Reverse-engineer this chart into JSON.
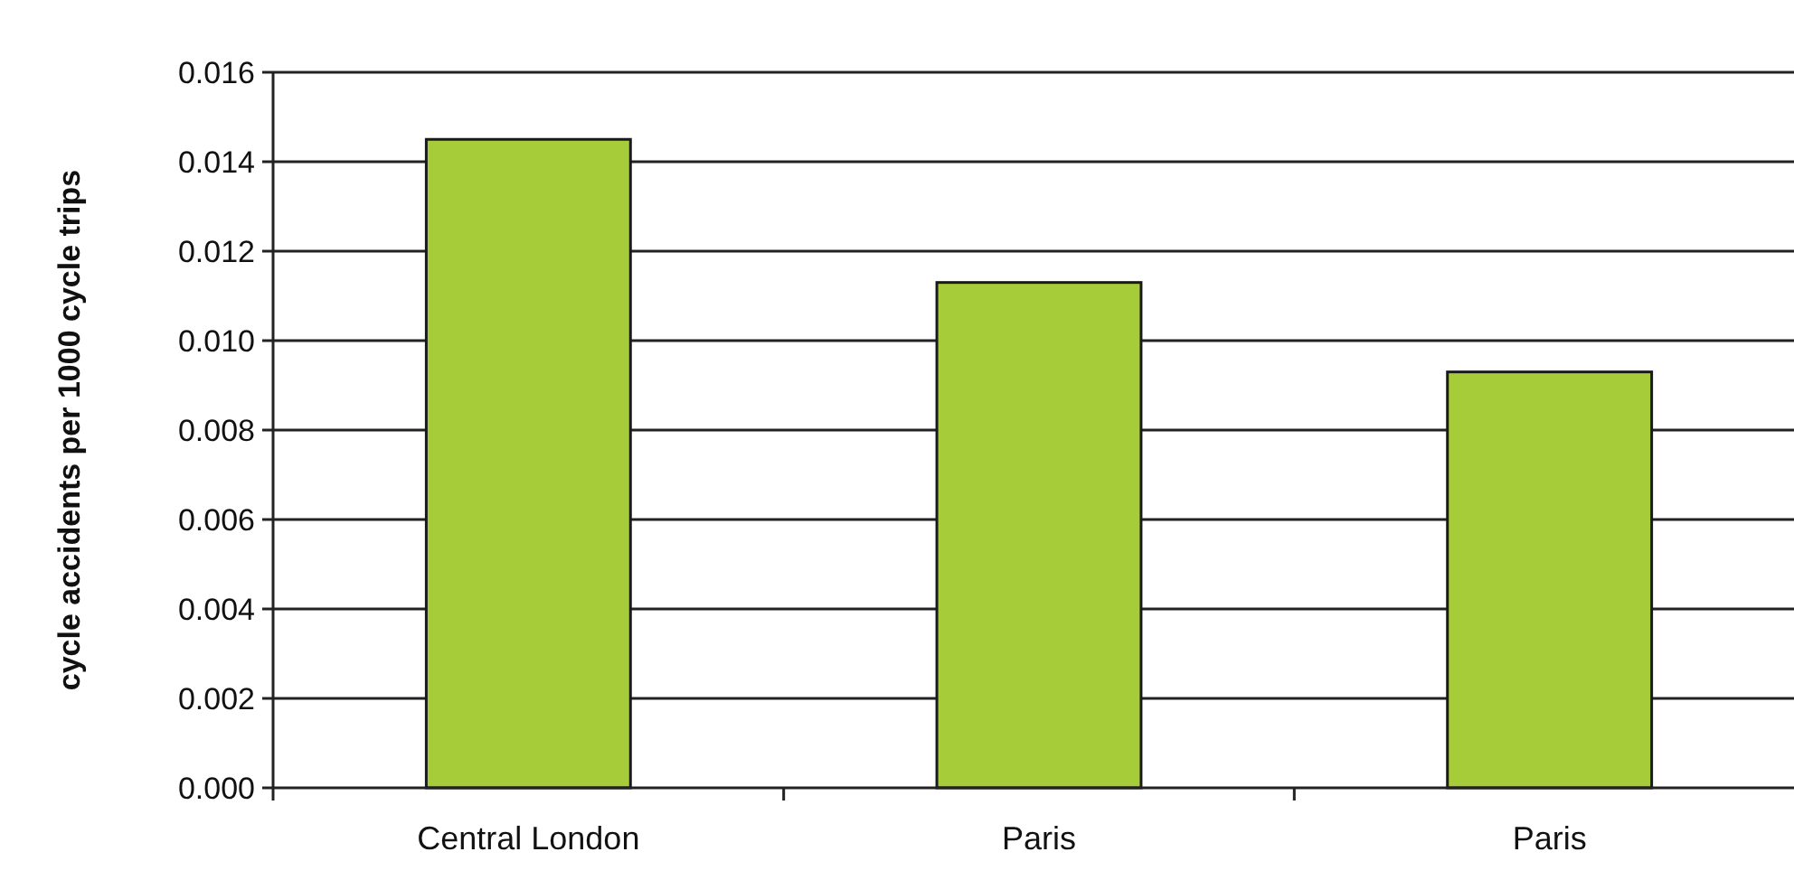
{
  "chart_data": {
    "type": "bar",
    "ylabel": "cycle accidents per 1000 cycle trips",
    "categories": [
      "Central London",
      "Paris",
      "Paris"
    ],
    "values": [
      0.0145,
      0.0113,
      0.0093
    ],
    "color": "#a6cc3a",
    "ylim": [
      0,
      0.016
    ],
    "yticks": [
      {
        "value": 0,
        "label": "0.000"
      },
      {
        "value": 0.002,
        "label": "0.002"
      },
      {
        "value": 0.004,
        "label": "0.004"
      },
      {
        "value": 0.006,
        "label": "0.006"
      },
      {
        "value": 0.008,
        "label": "0.008"
      },
      {
        "value": 0.01,
        "label": "0.010"
      },
      {
        "value": 0.012,
        "label": "0.012"
      },
      {
        "value": 0.014,
        "label": "0.014"
      },
      {
        "value": 0.016,
        "label": "0.016"
      }
    ],
    "grid": "y"
  }
}
